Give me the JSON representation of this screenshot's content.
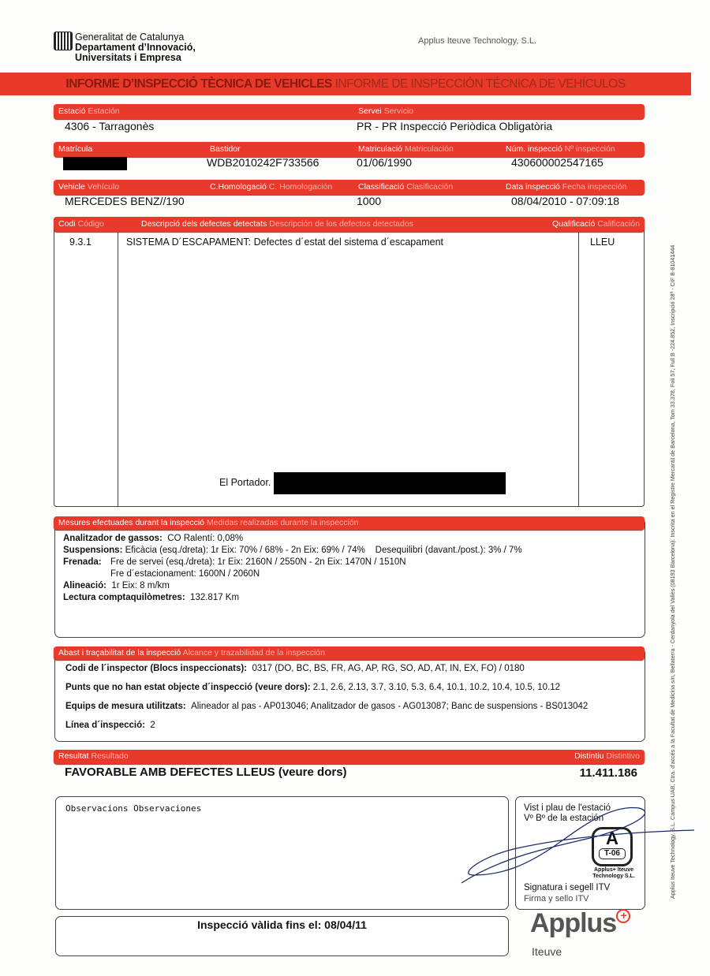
{
  "header": {
    "gov_line1": "Generalitat de Catalunya",
    "gov_line2": "Departament d’Innovació,",
    "gov_line3": "Universitats i Empresa",
    "company": "Applus Iteuve Technology, S.L."
  },
  "banner": {
    "title_ca": "INFORME D’INSPECCIÓ TÈCNICA DE VEHICLES",
    "title_es": "INFORME DE INSPECCIÓN TÉCNICA DE VEHÍCULOS"
  },
  "station": {
    "label_ca": "Estació",
    "label_es": "Estación",
    "value": "4306 - Tarragonès"
  },
  "service": {
    "label_ca": "Servei",
    "label_es": "Servicio",
    "value": "PR - PR Inspecció Periòdica Obligatòria"
  },
  "plate": {
    "label_ca": "Matrícula",
    "label_es": ""
  },
  "chassis": {
    "label_ca": "Bastidor",
    "value": "WDB2010242F733566"
  },
  "registration": {
    "label_ca": "Matriculació",
    "label_es": "Matriculación",
    "value": "01/06/1990"
  },
  "inspection_no": {
    "label_ca": "Núm. inspecció",
    "label_es": "Nº inspección",
    "value": "430600002547165"
  },
  "vehicle": {
    "label_ca": "Vehicle",
    "label_es": "Vehículo",
    "value": "MERCEDES BENZ//190"
  },
  "homologation": {
    "label_ca": "C.Homologació",
    "label_es": "C. Homologación"
  },
  "classification": {
    "label_ca": "Classificació",
    "label_es": "Clasificación",
    "value": "1000"
  },
  "inspection_date": {
    "label_ca": "Data inspecció",
    "label_es": "Fecha inspección",
    "value": "08/04/2010 - 07:09:18"
  },
  "defects": {
    "code_label_ca": "Codi",
    "code_label_es": "Código",
    "desc_label_ca": "Descripció dels defectes detectats",
    "desc_label_es": "Descripción de los defectos detectados",
    "rating_label_ca": "Qualificació",
    "rating_label_es": "Calificación",
    "rows": [
      {
        "code": "9.3.1",
        "description": "SISTEMA D´ESCAPAMENT: Defectes d´estat del sistema d´escapament",
        "rating": "LLEU"
      }
    ],
    "bearer_label": "El Portador."
  },
  "measurements": {
    "label_ca": "Mesures efectuades durant la inspecció",
    "label_es": "Medidas realizadas durante la inspección",
    "gas_label": "Analitzador de gassos:",
    "gas_value": "CO Ralentí: 0,08%",
    "susp_label": "Suspensions:",
    "susp_value": "Eficàcia (esq./dreta): 1r Eix: 70% / 68% - 2n Eix: 69% / 74%",
    "susp_imbalance": "Desequilibri (davant./post.): 3% / 7%",
    "brake_label": "Frenada:",
    "brake_service": "Fre de servei (esq./dreta): 1r Eix: 2160N / 2550N - 2n Eix: 1470N / 1510N",
    "brake_parking": "Fre d´estacionament:  1600N / 2060N",
    "align_label": "Alineació:",
    "align_value": "1r Eix: 8 m/km",
    "odo_label": "Lectura comptaquilòmetres:",
    "odo_value": "132.817 Km"
  },
  "scope": {
    "label_ca": "Abast i traçabilitat de la inspecció",
    "label_es": "Alcance y trazabilidad de la inspección",
    "inspector_label": "Codi de l´inspector (Blocs inspeccionats):",
    "inspector_value": "0317 (DO, BC, BS, FR, AG, AP, RG, SO, AD, AT, IN, EX, FO)  / 0180",
    "points_label": "Punts que no han estat objecte d´inspecció (veure dors):",
    "points_value": "2.1, 2.6, 2.13, 3.7, 3.10, 5.3, 6.4, 10.1, 10.2, 10.4, 10.5, 10.12",
    "equip_label": "Equips de mesura utilitzats:",
    "equip_value": "Alineador al pas - AP013046; Analitzador de gasos - AG013087; Banc de suspensions - BS013042",
    "line_label": "Línea d´inspecció:",
    "line_value": "2"
  },
  "result": {
    "label_ca": "Resultat",
    "label_es": "Resultado",
    "value": "FAVORABLE AMB DEFECTES LLEUS (veure dors)",
    "badge_label_ca": "Distintiu",
    "badge_label_es": "Distintivo",
    "badge_value": "11.411.186"
  },
  "observations": {
    "label_ca": "Observacions",
    "label_es": "Observaciones"
  },
  "validity": "Inspecció vàlida fins el: 08/04/11",
  "signature": {
    "approval_ca": "Vist i plau de l'estació",
    "approval_es": "Vº Bº de la estación",
    "sign_ca": "Signatura i segell ITV",
    "sign_es": "Firma y sello ITV",
    "stamp_code": "T-06",
    "stamp_text": "Applus+ Iteuve Technology S.L."
  },
  "footer_logo": {
    "brand": "Applus",
    "sub": "Iteuve"
  },
  "side_text": "Applus Iteuve Technology, S.L. Campus UAB, Ctra. d'accés a la Facultat de Medicina s/n, Bellaterra - Cerdanyola del Vallès (08193 Barcelona). Inscrita en el Registre Mercantil de Barcelona, Tom 33.378, Foli 57, Full B -224.852, Inscripció 28ª - CIF B-81041444",
  "colors": {
    "brand_red": "#e8392a",
    "banner_title": "#8a1a0e"
  }
}
